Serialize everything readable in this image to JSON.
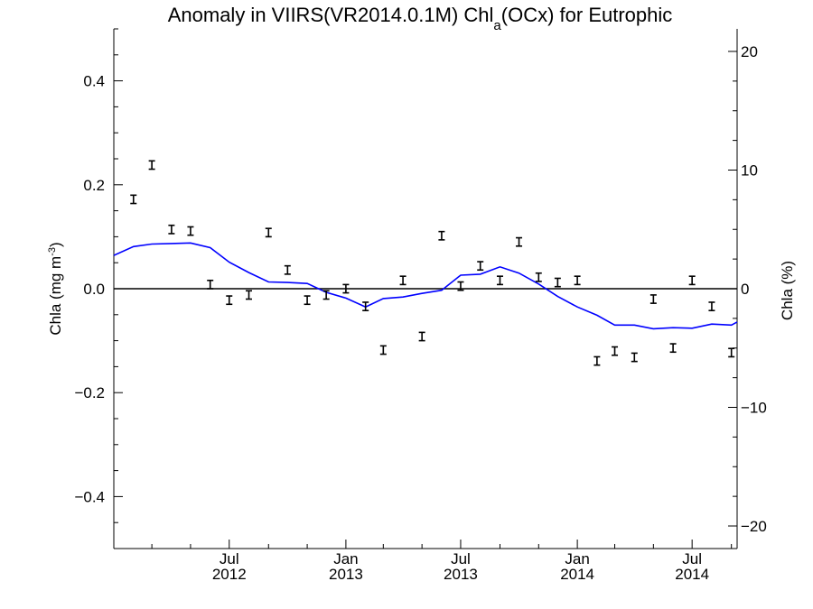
{
  "chart_data": {
    "type": "line",
    "title": {
      "prefix": "Anomaly in VIIRS(VR2014.0.1M) Chl",
      "subscript": "a",
      "suffix": "(OCx) for Eutrophic"
    },
    "ylabel_left": {
      "prefix": "Chla (mg m",
      "superscript": "-3",
      "suffix": ")"
    },
    "ylabel_right": "Chla (%)",
    "xlim": [
      "2012-01-01",
      "2014-09-10"
    ],
    "ylim_left": [
      -0.5,
      0.5
    ],
    "ylim_right": [
      -21.9,
      21.9
    ],
    "left_ticks": [
      {
        "value": 0.4,
        "label": "0.4"
      },
      {
        "value": 0.2,
        "label": "0.2"
      },
      {
        "value": 0.0,
        "label": "0.0"
      },
      {
        "value": -0.2,
        "label": "−0.2"
      },
      {
        "value": -0.4,
        "label": "−0.4"
      }
    ],
    "right_ticks": [
      {
        "value": 20,
        "label": "20"
      },
      {
        "value": 10,
        "label": "10"
      },
      {
        "value": 0,
        "label": "0"
      },
      {
        "value": -10,
        "label": "−10"
      },
      {
        "value": -20,
        "label": "−20"
      }
    ],
    "x_ticks": [
      {
        "date": "2012-07-01",
        "month": "Jul",
        "year": "2012"
      },
      {
        "date": "2013-01-01",
        "month": "Jan",
        "year": "2013"
      },
      {
        "date": "2013-07-01",
        "month": "Jul",
        "year": "2013"
      },
      {
        "date": "2014-01-01",
        "month": "Jan",
        "year": "2014"
      },
      {
        "date": "2014-07-01",
        "month": "Jul",
        "year": "2014"
      }
    ],
    "zero_line": 0,
    "series": [
      {
        "style": "error-bar points",
        "color": "#000000",
        "error": 0.008,
        "points": [
          {
            "x": "2012-02-01",
            "y": 0.172
          },
          {
            "x": "2012-03-01",
            "y": 0.238
          },
          {
            "x": "2012-04-01",
            "y": 0.114
          },
          {
            "x": "2012-05-01",
            "y": 0.111
          },
          {
            "x": "2012-06-01",
            "y": 0.008
          },
          {
            "x": "2012-07-01",
            "y": -0.022
          },
          {
            "x": "2012-08-01",
            "y": -0.012
          },
          {
            "x": "2012-09-01",
            "y": 0.108
          },
          {
            "x": "2012-10-01",
            "y": 0.036
          },
          {
            "x": "2012-11-01",
            "y": -0.022
          },
          {
            "x": "2012-12-01",
            "y": -0.012
          },
          {
            "x": "2013-01-01",
            "y": 0.0
          },
          {
            "x": "2013-02-01",
            "y": -0.034
          },
          {
            "x": "2013-03-01",
            "y": -0.118
          },
          {
            "x": "2013-04-01",
            "y": 0.016
          },
          {
            "x": "2013-05-01",
            "y": -0.092
          },
          {
            "x": "2013-06-01",
            "y": 0.102
          },
          {
            "x": "2013-07-01",
            "y": 0.005
          },
          {
            "x": "2013-08-01",
            "y": 0.044
          },
          {
            "x": "2013-09-01",
            "y": 0.016
          },
          {
            "x": "2013-10-01",
            "y": 0.09
          },
          {
            "x": "2013-11-01",
            "y": 0.022
          },
          {
            "x": "2013-12-01",
            "y": 0.012
          },
          {
            "x": "2014-01-01",
            "y": 0.016
          },
          {
            "x": "2014-02-01",
            "y": -0.139
          },
          {
            "x": "2014-03-01",
            "y": -0.12
          },
          {
            "x": "2014-04-01",
            "y": -0.132
          },
          {
            "x": "2014-05-01",
            "y": -0.02
          },
          {
            "x": "2014-06-01",
            "y": -0.114
          },
          {
            "x": "2014-07-01",
            "y": 0.016
          },
          {
            "x": "2014-08-01",
            "y": -0.034
          },
          {
            "x": "2014-09-01",
            "y": -0.123
          }
        ]
      },
      {
        "style": "line",
        "color": "#0000ff",
        "points": [
          {
            "x": "2012-01-01",
            "y": 0.064
          },
          {
            "x": "2012-02-01",
            "y": 0.081
          },
          {
            "x": "2012-03-01",
            "y": 0.086
          },
          {
            "x": "2012-04-01",
            "y": 0.087
          },
          {
            "x": "2012-05-01",
            "y": 0.088
          },
          {
            "x": "2012-06-01",
            "y": 0.079
          },
          {
            "x": "2012-07-01",
            "y": 0.051
          },
          {
            "x": "2012-08-01",
            "y": 0.031
          },
          {
            "x": "2012-09-01",
            "y": 0.013
          },
          {
            "x": "2012-10-01",
            "y": 0.012
          },
          {
            "x": "2012-11-01",
            "y": 0.01
          },
          {
            "x": "2012-12-01",
            "y": -0.007
          },
          {
            "x": "2013-01-01",
            "y": -0.018
          },
          {
            "x": "2013-02-01",
            "y": -0.035
          },
          {
            "x": "2013-03-01",
            "y": -0.019
          },
          {
            "x": "2013-04-01",
            "y": -0.016
          },
          {
            "x": "2013-05-01",
            "y": -0.009
          },
          {
            "x": "2013-06-01",
            "y": -0.003
          },
          {
            "x": "2013-07-01",
            "y": 0.026
          },
          {
            "x": "2013-08-01",
            "y": 0.028
          },
          {
            "x": "2013-09-01",
            "y": 0.042
          },
          {
            "x": "2013-10-01",
            "y": 0.03
          },
          {
            "x": "2013-11-01",
            "y": 0.009
          },
          {
            "x": "2013-12-01",
            "y": -0.015
          },
          {
            "x": "2014-01-01",
            "y": -0.035
          },
          {
            "x": "2014-02-01",
            "y": -0.051
          },
          {
            "x": "2014-03-01",
            "y": -0.07
          },
          {
            "x": "2014-04-01",
            "y": -0.07
          },
          {
            "x": "2014-05-01",
            "y": -0.077
          },
          {
            "x": "2014-06-01",
            "y": -0.075
          },
          {
            "x": "2014-07-01",
            "y": -0.076
          },
          {
            "x": "2014-08-01",
            "y": -0.068
          },
          {
            "x": "2014-09-01",
            "y": -0.07
          },
          {
            "x": "2014-09-10",
            "y": -0.064
          }
        ]
      }
    ]
  }
}
